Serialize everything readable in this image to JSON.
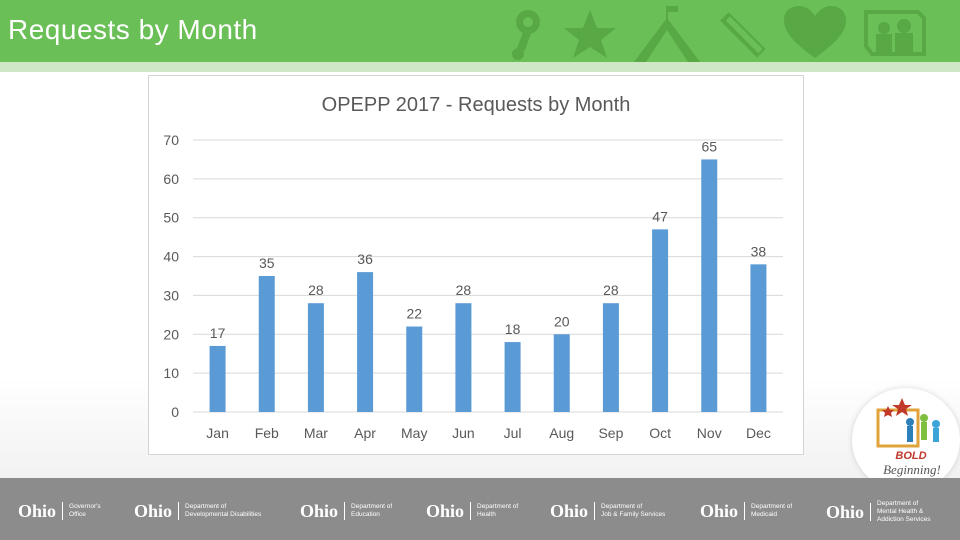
{
  "header": {
    "title": "Requests by Month",
    "background": "#6abf57",
    "icons": [
      "toy-icon",
      "star-icon",
      "schoolhouse-icon",
      "pencil-icon",
      "heart-icon",
      "family-ohio-icon"
    ]
  },
  "chart_data": {
    "type": "bar",
    "title": "OPEPP 2017 - Requests by Month",
    "categories": [
      "Jan",
      "Feb",
      "Mar",
      "Apr",
      "May",
      "Jun",
      "Jul",
      "Aug",
      "Sep",
      "Oct",
      "Nov",
      "Dec"
    ],
    "values": [
      17,
      35,
      28,
      36,
      22,
      28,
      18,
      20,
      28,
      47,
      65,
      38
    ],
    "yticks": [
      0,
      10,
      20,
      30,
      40,
      50,
      60,
      70
    ],
    "ylim": [
      0,
      70
    ],
    "grid": true,
    "bar_color": "#5b9bd5",
    "data_labels": true
  },
  "badge": {
    "line1": "BOLD",
    "line2": "Beginning!"
  },
  "footer": {
    "logos": [
      {
        "ohio": "Ohio",
        "dept": "Governor's\nOffice"
      },
      {
        "ohio": "Ohio",
        "dept": "Department of\nDevelopmental Disabilities"
      },
      {
        "ohio": "Ohio",
        "dept": "Department of\nEducation"
      },
      {
        "ohio": "Ohio",
        "dept": "Department of\nHealth"
      },
      {
        "ohio": "Ohio",
        "dept": "Department of\nJob & Family Services"
      },
      {
        "ohio": "Ohio",
        "dept": "Department of\nMedicaid"
      },
      {
        "ohio": "Ohio",
        "dept": "Department of\nMental Health &\nAddiction Services"
      }
    ]
  }
}
